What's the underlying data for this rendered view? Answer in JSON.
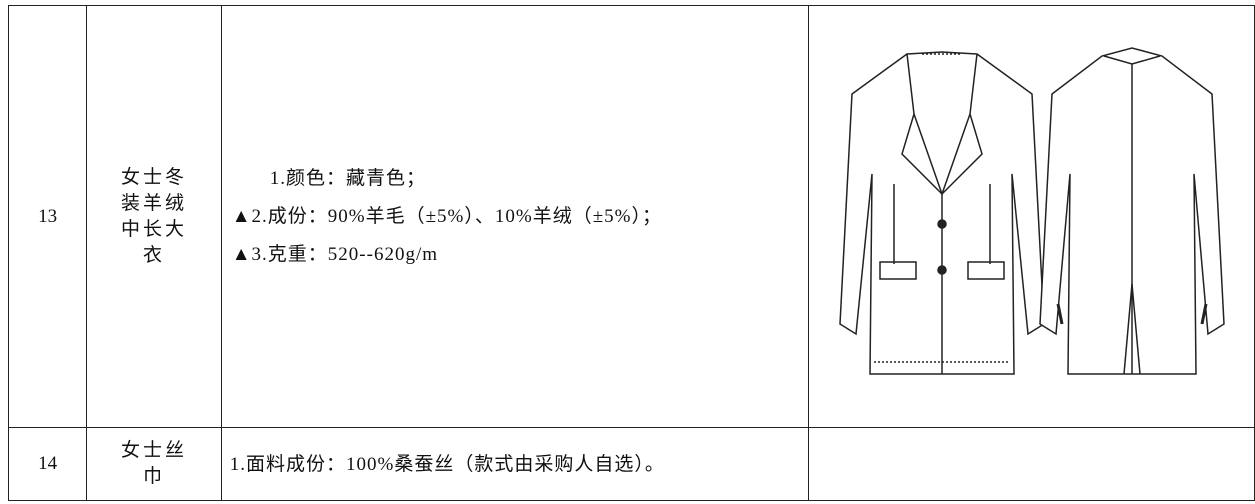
{
  "table": {
    "rows": [
      {
        "number": "13",
        "name": "女士冬装羊绒中长大衣",
        "spec": [
          "1.颜色：藏青色；",
          "▲2.成份：90%羊毛（±5%）、10%羊绒（±5%）；",
          "▲3.克重：520--620g/m"
        ]
      },
      {
        "number": "14",
        "name": "女士丝巾",
        "spec": [
          "1.面料成份：100%桑蚕丝（款式由采购人自选）。"
        ]
      }
    ]
  }
}
